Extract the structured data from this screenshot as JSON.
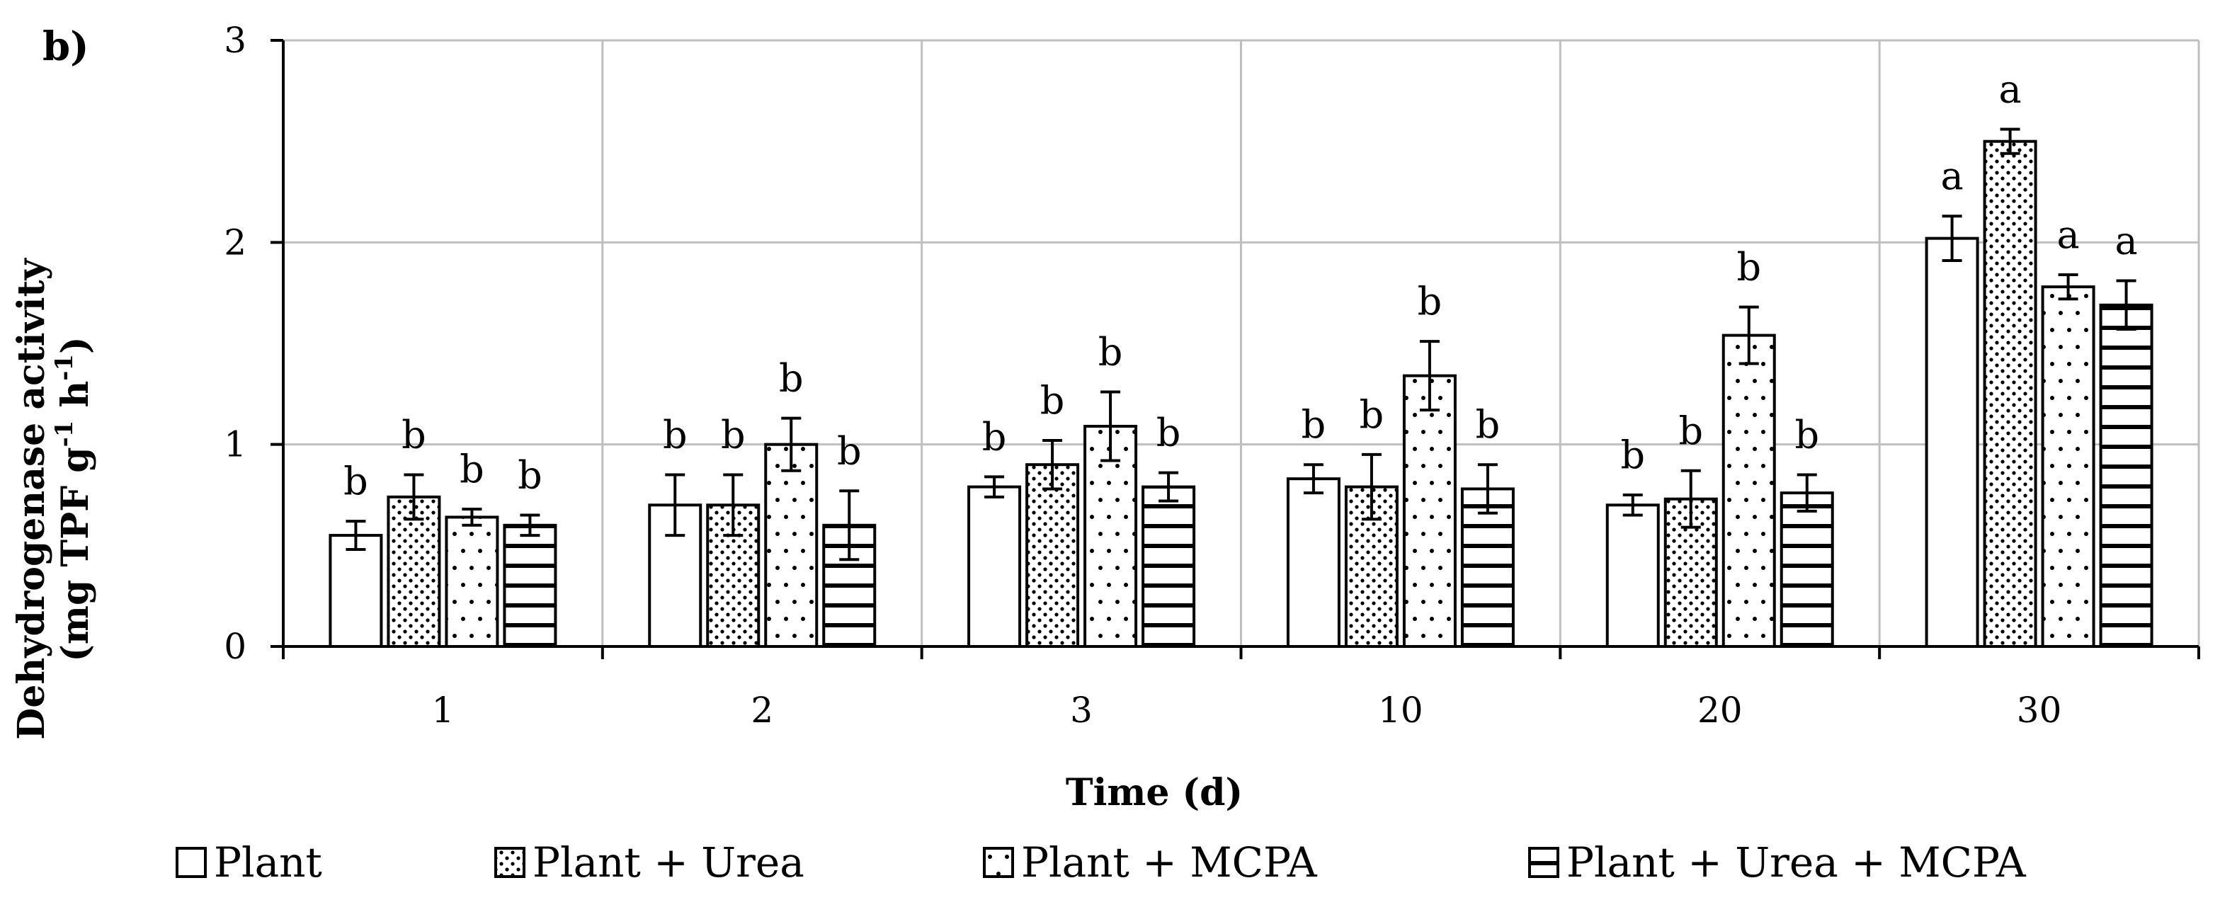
{
  "chart_data": {
    "type": "bar",
    "panel_label": "b)",
    "title": "",
    "xlabel": "Time (d)",
    "ylabel_line1": "Dehydrogenase activity",
    "ylabel_line2": "(mg TPF g",
    "ylabel_sup1": "-1",
    "ylabel_mid": " h",
    "ylabel_sup2": "-1",
    "ylabel_end": ")",
    "ylim": [
      0,
      3
    ],
    "yticks": [
      "0",
      "1",
      "2",
      "3"
    ],
    "categories": [
      "1",
      "2",
      "3",
      "10",
      "20",
      "30"
    ],
    "grid": true,
    "legend_position": "bottom",
    "series": [
      {
        "name": "Plant",
        "pattern": "plain",
        "values": [
          0.55,
          0.7,
          0.79,
          0.83,
          0.7,
          2.02
        ],
        "errors": [
          0.07,
          0.15,
          0.05,
          0.07,
          0.05,
          0.11
        ],
        "labels": [
          "b",
          "b",
          "b",
          "b",
          "b",
          "a"
        ]
      },
      {
        "name": "Plant + Urea",
        "pattern": "dots-dense",
        "values": [
          0.74,
          0.7,
          0.9,
          0.79,
          0.73,
          2.5
        ],
        "errors": [
          0.11,
          0.15,
          0.12,
          0.16,
          0.14,
          0.06
        ],
        "labels": [
          "b",
          "b",
          "b",
          "b",
          "b",
          "a"
        ]
      },
      {
        "name": "Plant + MCPA",
        "pattern": "dots-sparse",
        "values": [
          0.64,
          1.0,
          1.09,
          1.34,
          1.54,
          1.78
        ],
        "errors": [
          0.04,
          0.13,
          0.17,
          0.17,
          0.14,
          0.06
        ],
        "labels": [
          "b",
          "b",
          "b",
          "b",
          "b",
          "a"
        ]
      },
      {
        "name": "Plant + Urea + MCPA",
        "pattern": "horizontal-lines",
        "values": [
          0.6,
          0.6,
          0.79,
          0.78,
          0.76,
          1.69
        ],
        "errors": [
          0.05,
          0.17,
          0.07,
          0.12,
          0.09,
          0.12
        ],
        "labels": [
          "b",
          "b",
          "b",
          "b",
          "b",
          "a"
        ]
      }
    ]
  },
  "colors": {
    "axis": "#000000",
    "grid": "#bfbfbf",
    "bar_fill": "#ffffff"
  }
}
